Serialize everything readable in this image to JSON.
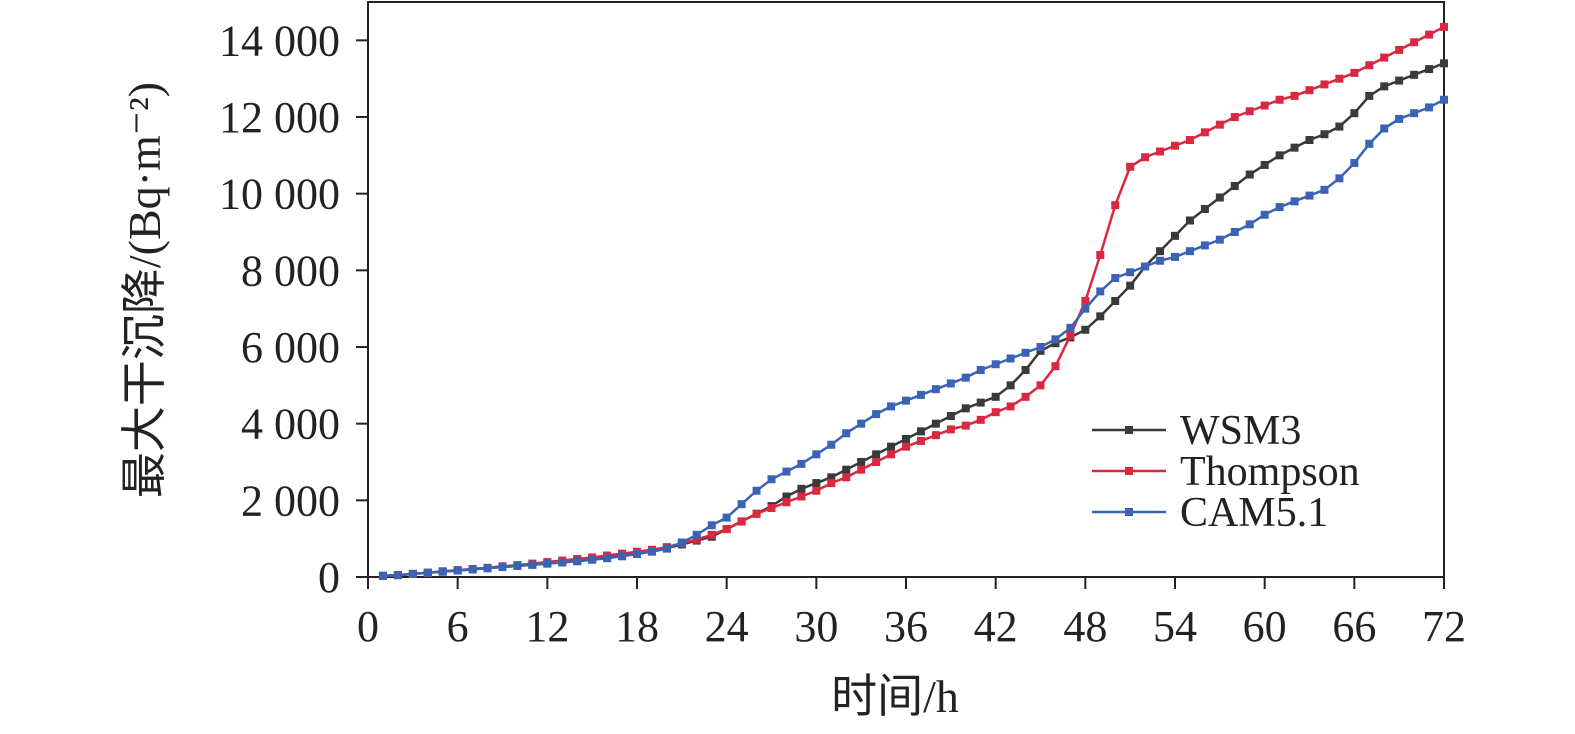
{
  "chart_data": {
    "type": "line",
    "x": [
      1,
      2,
      3,
      4,
      5,
      6,
      7,
      8,
      9,
      10,
      11,
      12,
      13,
      14,
      15,
      16,
      17,
      18,
      19,
      20,
      21,
      22,
      23,
      24,
      25,
      26,
      27,
      28,
      29,
      30,
      31,
      32,
      33,
      34,
      35,
      36,
      37,
      38,
      39,
      40,
      41,
      42,
      43,
      44,
      45,
      46,
      47,
      48,
      49,
      50,
      51,
      52,
      53,
      54,
      55,
      56,
      57,
      58,
      59,
      60,
      61,
      62,
      63,
      64,
      65,
      66,
      67,
      68,
      69,
      70,
      71,
      72
    ],
    "xlim": [
      0,
      72
    ],
    "xticks": [
      0,
      6,
      12,
      18,
      24,
      30,
      36,
      42,
      48,
      54,
      60,
      66,
      72
    ],
    "ylim": [
      0,
      15000
    ],
    "yticks": [
      0,
      {
        "value": 2000,
        "label": "2 000"
      },
      {
        "value": 4000,
        "label": "4 000"
      },
      {
        "value": 6000,
        "label": "6 000"
      },
      {
        "value": 8000,
        "label": "8 000"
      },
      {
        "value": 10000,
        "label": "10 000"
      },
      {
        "value": 12000,
        "label": "12 000"
      },
      {
        "value": 14000,
        "label": "14 000"
      }
    ],
    "xlabel": "时间/h",
    "ylabel": "最大干沉降/(Bq·m⁻²)",
    "legend": "lower right",
    "series": [
      {
        "name": "WSM3",
        "color": "#3a3a3a",
        "values": [
          30,
          50,
          80,
          110,
          140,
          170,
          200,
          230,
          260,
          290,
          320,
          350,
          380,
          420,
          460,
          500,
          550,
          620,
          680,
          750,
          850,
          950,
          1050,
          1250,
          1450,
          1650,
          1850,
          2100,
          2300,
          2450,
          2600,
          2800,
          3000,
          3200,
          3400,
          3600,
          3800,
          4000,
          4200,
          4400,
          4550,
          4700,
          5000,
          5400,
          5900,
          6100,
          6250,
          6450,
          6800,
          7200,
          7600,
          8100,
          8500,
          8900,
          9300,
          9600,
          9900,
          10200,
          10500,
          10750,
          11000,
          11200,
          11400,
          11550,
          11750,
          12100,
          12550,
          12800,
          12950,
          13100,
          13250,
          13400
        ]
      },
      {
        "name": "Thompson",
        "color": "#d9283f",
        "values": [
          30,
          50,
          80,
          110,
          150,
          180,
          210,
          240,
          280,
          310,
          350,
          390,
          430,
          470,
          510,
          560,
          610,
          660,
          710,
          780,
          880,
          980,
          1100,
          1250,
          1450,
          1650,
          1800,
          1950,
          2100,
          2250,
          2450,
          2600,
          2800,
          3000,
          3200,
          3400,
          3550,
          3700,
          3850,
          3950,
          4100,
          4300,
          4450,
          4700,
          5000,
          5500,
          6300,
          7200,
          8400,
          9700,
          10700,
          10950,
          11100,
          11250,
          11400,
          11600,
          11800,
          12000,
          12150,
          12300,
          12450,
          12550,
          12700,
          12850,
          13000,
          13150,
          13350,
          13550,
          13750,
          13950,
          14150,
          14350
        ]
      },
      {
        "name": "CAM5.1",
        "color": "#3b63b5",
        "values": [
          30,
          50,
          80,
          110,
          140,
          170,
          200,
          230,
          260,
          290,
          320,
          350,
          380,
          410,
          450,
          490,
          540,
          600,
          660,
          740,
          900,
          1100,
          1350,
          1550,
          1900,
          2250,
          2550,
          2750,
          2950,
          3200,
          3450,
          3750,
          4000,
          4250,
          4450,
          4600,
          4750,
          4900,
          5050,
          5200,
          5400,
          5550,
          5700,
          5850,
          6000,
          6200,
          6500,
          7000,
          7450,
          7800,
          7950,
          8100,
          8250,
          8350,
          8500,
          8650,
          8800,
          9000,
          9200,
          9450,
          9650,
          9800,
          9950,
          10100,
          10400,
          10800,
          11300,
          11700,
          11950,
          12100,
          12250,
          12450
        ]
      }
    ]
  }
}
